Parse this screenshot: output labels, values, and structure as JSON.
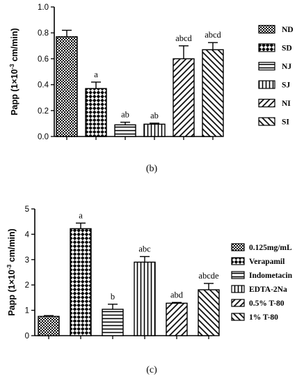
{
  "chart_data": [
    {
      "type": "bar",
      "panel_label": "(b)",
      "ylabel": "Papp (1×10",
      "ylabel_exp": "-3",
      "ylabel_tail": " cm/min)",
      "ylim": [
        0,
        1.0
      ],
      "yticks": [
        "0.0",
        "0.2",
        "0.4",
        "0.6",
        "0.8",
        "1.0"
      ],
      "ytick_values": [
        0,
        0.2,
        0.4,
        0.6,
        0.8,
        1.0
      ],
      "categories": [
        "ND",
        "SD",
        "NJ",
        "SJ",
        "NI",
        "SI"
      ],
      "values": [
        0.77,
        0.37,
        0.09,
        0.095,
        0.6,
        0.67
      ],
      "errors": [
        0.05,
        0.05,
        0.02,
        0.008,
        0.1,
        0.055
      ],
      "labels": [
        "",
        "a",
        "ab",
        "ab",
        "abcd",
        "abcd"
      ],
      "patterns": [
        "diamondCheck",
        "bigCheck",
        "hlines",
        "vlines",
        "diag",
        "antidiag"
      ],
      "legend": [
        "ND",
        "SD",
        "NJ",
        "SJ",
        "NI",
        "SI"
      ],
      "legend_position": "right"
    },
    {
      "type": "bar",
      "panel_label": "(c)",
      "ylabel": "Papp (1×10",
      "ylabel_exp": "-3",
      "ylabel_tail": " cm/min)",
      "ylim": [
        0,
        5
      ],
      "yticks": [
        "0",
        "1",
        "2",
        "3",
        "4",
        "5"
      ],
      "ytick_values": [
        0,
        1,
        2,
        3,
        4,
        5
      ],
      "categories": [
        "0.125mg/mL",
        "Verapamil",
        "Indometacin",
        "EDTA-2Na",
        "0.5% T-80",
        "1% T-80"
      ],
      "values": [
        0.76,
        4.22,
        1.04,
        2.9,
        1.28,
        1.81
      ],
      "errors": [
        0.03,
        0.22,
        0.2,
        0.22,
        0.03,
        0.25
      ],
      "labels": [
        "",
        "a",
        "b",
        "abc",
        "abd",
        "abcde"
      ],
      "patterns": [
        "diamondCheck",
        "bigCheck",
        "hlines",
        "vlines",
        "diag",
        "antidiag"
      ],
      "legend": [
        "0.125mg/mL",
        "Verapamil",
        "Indometacin",
        "EDTA-2Na",
        "0.5% T-80",
        "1% T-80"
      ],
      "legend_position": "right"
    }
  ]
}
